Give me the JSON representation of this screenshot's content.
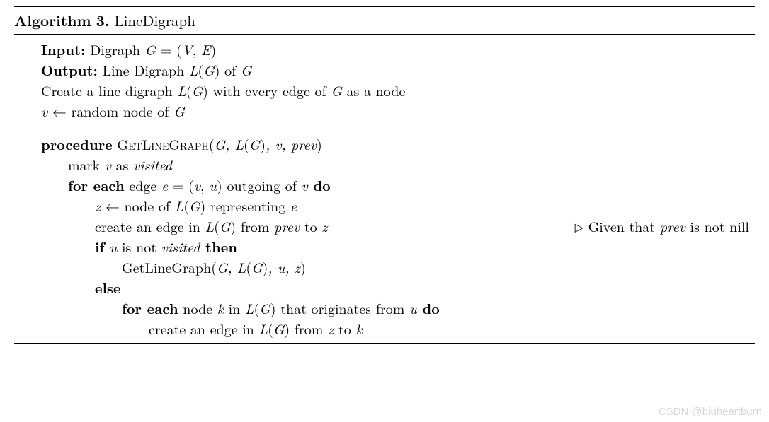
{
  "algorithm": {
    "number": "3",
    "name": "LineDigraph",
    "title_prefix": "Algorithm",
    "input_label": "Input:",
    "input_text_pre": "Digraph ",
    "input_G": "G",
    "input_eq": " = (",
    "input_V": "V",
    "input_comma": ", ",
    "input_E": "E",
    "input_close": ")",
    "output_label": "Output:",
    "output_text_pre": "Line Digraph ",
    "output_L": "L",
    "output_paren_o": "(",
    "output_G": "G",
    "output_paren_c": ")",
    "output_of": " of ",
    "output_G2": "G",
    "l3_pre": "Create a line digraph ",
    "l3_L": "L",
    "l3_po": "(",
    "l3_G": "G",
    "l3_pc": ")",
    "l3_mid": " with every edge of ",
    "l3_G2": "G",
    "l3_post": " as a node",
    "l4_v": "v",
    "l4_arrow": " ← ",
    "l4_text": "random node of ",
    "l4_G": "G",
    "proc_kw": "procedure",
    "proc_name": "GetLineGraph",
    "proc_args_o": "(",
    "proc_G": "G",
    "proc_c1": ", ",
    "proc_L": "L",
    "proc_po": "(",
    "proc_LG": "G",
    "proc_pc": ")",
    "proc_c2": ", ",
    "proc_v": "v",
    "proc_c3": ", ",
    "proc_prev": "prev",
    "proc_args_c": ")",
    "l6_pre": "mark ",
    "l6_v": "v",
    "l6_mid": " as ",
    "l6_visited": "visited",
    "l7_for": "for each",
    "l7_mid1": " edge ",
    "l7_e": "e",
    "l7_eq": " = (",
    "l7_v": "v",
    "l7_comma": ", ",
    "l7_u": "u",
    "l7_close": ")",
    "l7_mid2": " outgoing of ",
    "l7_v2": "v",
    "l7_do": " do",
    "l8_z": "z",
    "l8_arrow": " ← ",
    "l8_text": "node of ",
    "l8_L": "L",
    "l8_po": "(",
    "l8_G": "G",
    "l8_pc": ")",
    "l8_rep": " representing ",
    "l8_e": "e",
    "l9_pre": "create an edge in ",
    "l9_L": "L",
    "l9_po": "(",
    "l9_G": "G",
    "l9_pc": ")",
    "l9_from": " from ",
    "l9_prev": "prev",
    "l9_to": " to ",
    "l9_z": "z",
    "l9_comment_tri": "▷",
    "l9_comment_pre": " Given that ",
    "l9_comment_prev": "prev",
    "l9_comment_post": " is not nill",
    "l10_if": "if",
    "l10_u": " u",
    "l10_mid": " is not ",
    "l10_visited": "visited",
    "l10_then": " then",
    "l11_call": "GetLineGraph",
    "l11_o": "(",
    "l11_G": "G",
    "l11_c1": ", ",
    "l11_L": "L",
    "l11_po": "(",
    "l11_LG": "G",
    "l11_pc": ")",
    "l11_c2": ", ",
    "l11_u": "u",
    "l11_c3": ", ",
    "l11_z": "z",
    "l11_cl": ")",
    "l12_else": "else",
    "l13_for": "for each",
    "l13_mid1": " node ",
    "l13_k": "k",
    "l13_in": " in ",
    "l13_L": "L",
    "l13_po": "(",
    "l13_G": "G",
    "l13_pc": ")",
    "l13_orig": " that originates from ",
    "l13_u": "u",
    "l13_do": " do",
    "l14_pre": "create an edge in ",
    "l14_L": "L",
    "l14_po": "(",
    "l14_G": "G",
    "l14_pc": ")",
    "l14_from": " from ",
    "l14_z": "z",
    "l14_to": " to ",
    "l14_k": "k"
  },
  "watermark": "CSDN @biuheartburn"
}
